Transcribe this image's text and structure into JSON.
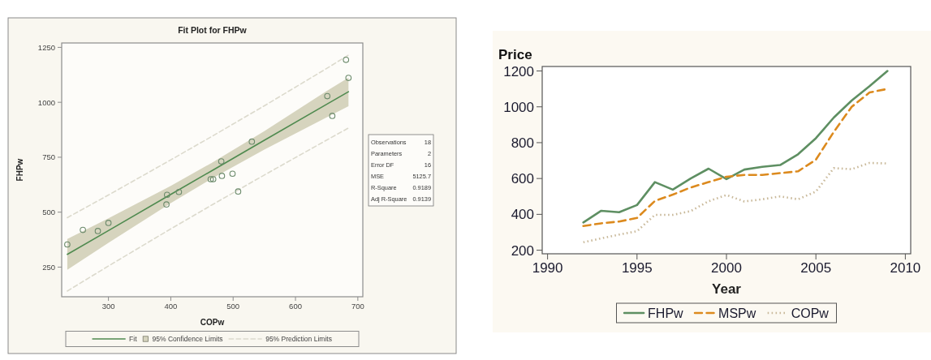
{
  "chart_data": [
    {
      "type": "scatter",
      "title": "Fit Plot for FHPw",
      "xlabel": "COPw",
      "ylabel": "FHPw",
      "xlim": [
        225,
        708
      ],
      "ylim": [
        115,
        1270
      ],
      "xticks": [
        300,
        400,
        500,
        600,
        700
      ],
      "yticks": [
        250,
        500,
        750,
        1000,
        1250
      ],
      "legend": "bottom",
      "annotations": [
        "Observations 18",
        "Parameters 2",
        "Error DF 16",
        "MSE 5125.7",
        "R-Square 0.9189",
        "Adj R-Square 0.9139"
      ],
      "series": [
        {
          "name": "Fit",
          "type": "line",
          "color": "#4f8a4f",
          "x": [
            234,
            300,
            400,
            466,
            550,
            650,
            685
          ],
          "values": [
            308,
            416,
            581,
            689,
            827,
            991,
            1048
          ],
          "lower": [
            238,
            360,
            541,
            653,
            785,
            931,
            982
          ],
          "upper": [
            378,
            472,
            620,
            725,
            869,
            1051,
            1112
          ]
        },
        {
          "name": "95% Confidence Limits",
          "type": "area",
          "color": "#d6d4be"
        },
        {
          "name": "95% Prediction Limits",
          "type": "line",
          "line_style": "dashed",
          "color": "#dcdacd",
          "x": [
            234,
            300,
            400,
            466,
            550,
            650,
            685
          ],
          "values": [
            475,
            578,
            738,
            845,
            984,
            1154,
            1215
          ]
        },
        {
          "type": "line",
          "line_style": "dashed",
          "color": "#dcdacd",
          "x": [
            234,
            300,
            400,
            466,
            550,
            650,
            685
          ],
          "values": [
            141,
            255,
            424,
            533,
            669,
            828,
            883
          ]
        },
        {
          "type": "scatter",
          "marker": "circle",
          "color": "#6b8a6b",
          "x": [
            234,
            259,
            283,
            300,
            393,
            394,
            413,
            464,
            468,
            482,
            481,
            499,
            508,
            530,
            651,
            659,
            681,
            685
          ],
          "values": [
            353,
            419,
            414,
            451,
            535,
            579,
            592,
            650,
            650,
            665,
            731,
            675,
            594,
            821,
            1028,
            938,
            1193,
            1111
          ]
        }
      ]
    },
    {
      "type": "line",
      "xlabel": "Year",
      "ylabel": "Price",
      "x": [
        1992,
        1993,
        1994,
        1995,
        1996,
        1997,
        1998,
        1999,
        2000,
        2001,
        2002,
        2003,
        2004,
        2005,
        2006,
        2007,
        2008,
        2009
      ],
      "xlim": [
        1989.7,
        2010.3
      ],
      "ylim": [
        180,
        1225
      ],
      "xticks": [
        1990,
        1995,
        2000,
        2005,
        2010
      ],
      "yticks": [
        200,
        400,
        600,
        800,
        1000,
        1200
      ],
      "legend": "bottom",
      "series": [
        {
          "name": "FHPw",
          "color": "#5e8f62",
          "line_style": "solid",
          "values": [
            355,
            420,
            412,
            452,
            580,
            538,
            600,
            655,
            597,
            650,
            665,
            675,
            735,
            825,
            940,
            1035,
            1115,
            1200
          ]
        },
        {
          "name": "MSPw",
          "color": "#dc8a1e",
          "line_style": "dashed",
          "values": [
            335,
            350,
            360,
            380,
            475,
            510,
            550,
            580,
            610,
            620,
            620,
            630,
            640,
            705,
            860,
            1000,
            1080,
            1100
          ]
        },
        {
          "name": "COPw",
          "color": "#c9b99a",
          "line_style": "dotted",
          "values": [
            244,
            266,
            287,
            306,
            397,
            397,
            418,
            473,
            508,
            472,
            484,
            500,
            484,
            527,
            658,
            652,
            687,
            684
          ]
        }
      ]
    }
  ]
}
